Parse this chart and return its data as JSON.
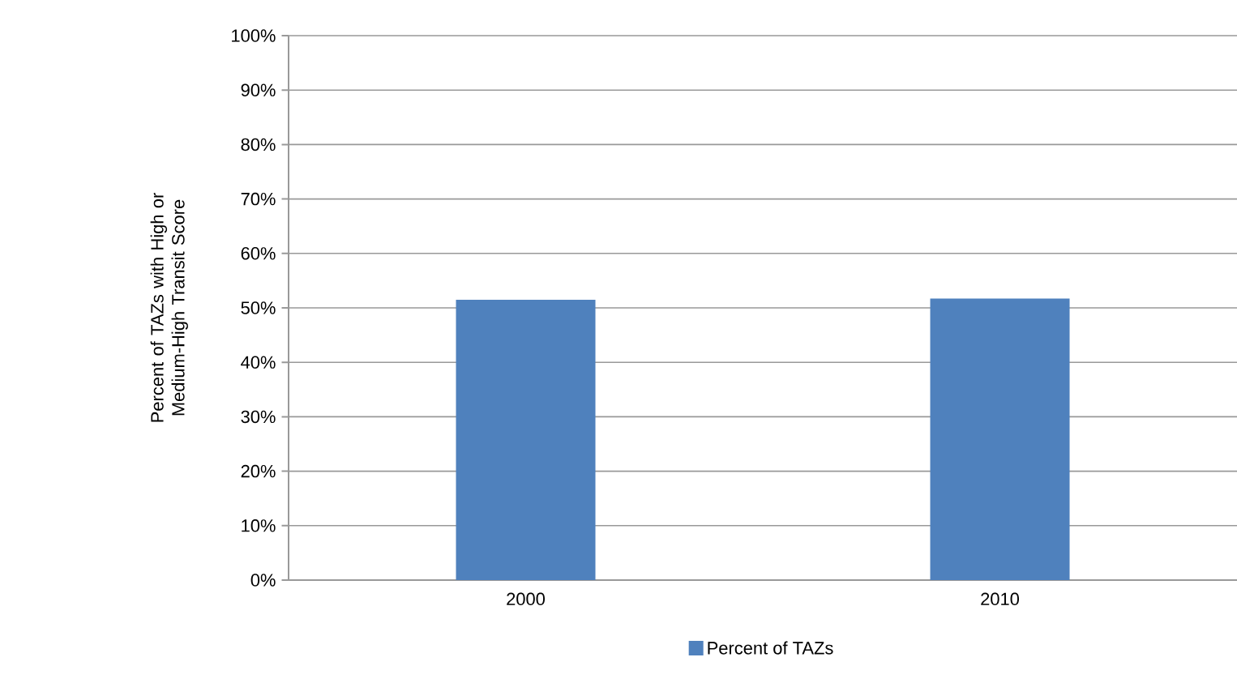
{
  "chart_data": {
    "type": "bar",
    "ylabel": "Percent of TAZs with High or Medium-High Transit Score",
    "categories": [
      "2000",
      "2010"
    ],
    "series": [
      {
        "name": "Percent of TAZs",
        "color": "#4f81bd",
        "values": [
          51.5,
          51.7
        ]
      }
    ],
    "ylim": [
      0,
      100
    ],
    "yticks": [
      {
        "value": 0,
        "label": "0%"
      },
      {
        "value": 10,
        "label": "10%"
      },
      {
        "value": 20,
        "label": "20%"
      },
      {
        "value": 30,
        "label": "30%"
      },
      {
        "value": 40,
        "label": "40%"
      },
      {
        "value": 50,
        "label": "50%"
      },
      {
        "value": 60,
        "label": "60%"
      },
      {
        "value": 70,
        "label": "70%"
      },
      {
        "value": 80,
        "label": "80%"
      },
      {
        "value": 90,
        "label": "90%"
      },
      {
        "value": 100,
        "label": "100%"
      }
    ],
    "grid": "y",
    "legend": "bottom"
  }
}
